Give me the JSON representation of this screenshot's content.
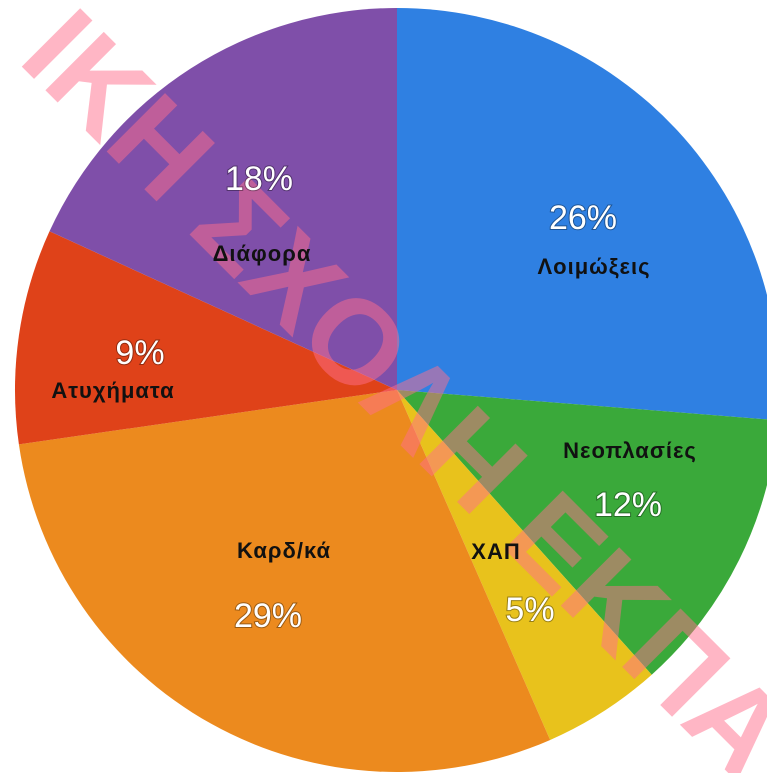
{
  "chart_data": {
    "type": "pie",
    "categories": [
      "Λοιμώξεις",
      "Νεοπλασίες",
      "ΧΑΠ",
      "Καρδ/κά",
      "Ατυχήματα",
      "Διάφορα"
    ],
    "values": [
      26,
      12,
      5,
      29,
      9,
      18
    ],
    "value_labels": [
      "26%",
      "12%",
      "5%",
      "29%",
      "9%",
      "18%"
    ],
    "colors": [
      "#2f80e2",
      "#3aa93a",
      "#e8c21c",
      "#ec8a1e",
      "#df4219",
      "#7f4fa9"
    ],
    "watermark": "ΙΚΗ ΣΧΟΛΗ ΕΚΠΑ"
  }
}
